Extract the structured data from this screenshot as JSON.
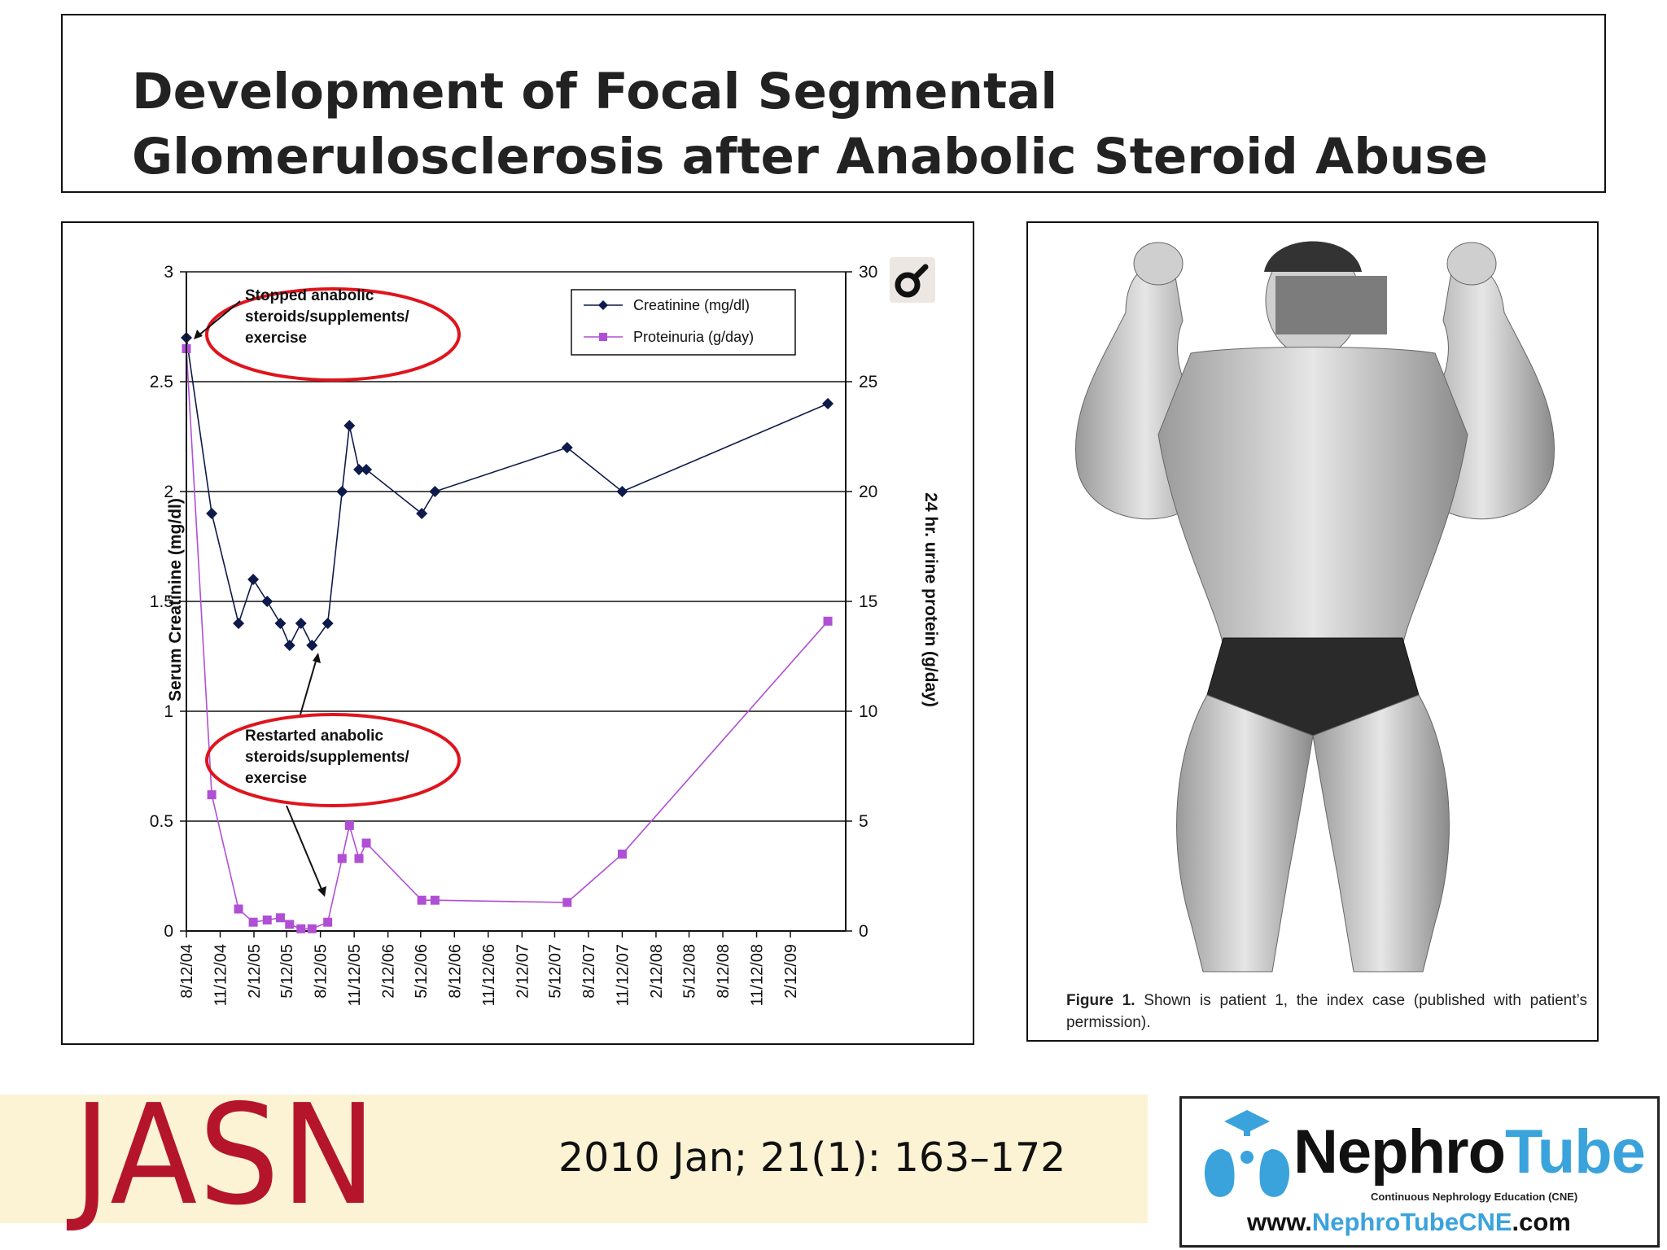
{
  "slide": {
    "title": "Development of Focal Segmental Glomerulosclerosis after Anabolic Steroid Abuse"
  },
  "chart_data": {
    "type": "line",
    "title": "",
    "ylabel": "Serum Creatinine (mg/dl)",
    "y2label": "24 hr. urine protein (g/day)",
    "ylim": [
      0,
      3
    ],
    "y2lim": [
      0,
      30
    ],
    "yticks": [
      "0",
      "0.5",
      "1",
      "1.5",
      "2",
      "2.5",
      "3"
    ],
    "y2ticks": [
      "0",
      "5",
      "10",
      "15",
      "20",
      "25",
      "30"
    ],
    "xticks": [
      "8/12/04",
      "11/12/04",
      "2/12/05",
      "5/12/05",
      "8/12/05",
      "11/12/05",
      "2/12/06",
      "5/12/06",
      "8/12/06",
      "11/12/06",
      "2/12/07",
      "5/12/07",
      "8/12/07",
      "11/12/07",
      "2/12/08",
      "5/12/08",
      "8/12/08",
      "11/12/08",
      "2/12/09"
    ],
    "grid": true,
    "legend_position": "top-right",
    "series": [
      {
        "name": "Creatinine (mg/dl)",
        "axis": "left",
        "color": "#0d1a4a",
        "marker": "diamond",
        "points": [
          {
            "x": "2004-08-12",
            "y": 2.7
          },
          {
            "x": "2004-10-20",
            "y": 1.9
          },
          {
            "x": "2005-01-01",
            "y": 1.4
          },
          {
            "x": "2005-02-10",
            "y": 1.6
          },
          {
            "x": "2005-03-20",
            "y": 1.5
          },
          {
            "x": "2005-04-25",
            "y": 1.4
          },
          {
            "x": "2005-05-20",
            "y": 1.3
          },
          {
            "x": "2005-06-20",
            "y": 1.4
          },
          {
            "x": "2005-07-20",
            "y": 1.3
          },
          {
            "x": "2005-09-01",
            "y": 1.4
          },
          {
            "x": "2005-10-10",
            "y": 2.0
          },
          {
            "x": "2005-10-30",
            "y": 2.3
          },
          {
            "x": "2005-11-25",
            "y": 2.1
          },
          {
            "x": "2005-12-15",
            "y": 2.1
          },
          {
            "x": "2006-05-15",
            "y": 1.9
          },
          {
            "x": "2006-06-20",
            "y": 2.0
          },
          {
            "x": "2007-06-15",
            "y": 2.2
          },
          {
            "x": "2007-11-12",
            "y": 2.0
          },
          {
            "x": "2009-05-25",
            "y": 2.4
          }
        ]
      },
      {
        "name": "Proteinuria (g/day)",
        "axis": "right",
        "color": "#b04fd4",
        "marker": "square",
        "points": [
          {
            "x": "2004-08-12",
            "y": 26.5
          },
          {
            "x": "2004-10-20",
            "y": 6.2
          },
          {
            "x": "2005-01-01",
            "y": 1.0
          },
          {
            "x": "2005-02-10",
            "y": 0.4
          },
          {
            "x": "2005-03-20",
            "y": 0.5
          },
          {
            "x": "2005-04-25",
            "y": 0.6
          },
          {
            "x": "2005-05-20",
            "y": 0.3
          },
          {
            "x": "2005-06-20",
            "y": 0.1
          },
          {
            "x": "2005-07-20",
            "y": 0.1
          },
          {
            "x": "2005-09-01",
            "y": 0.4
          },
          {
            "x": "2005-10-10",
            "y": 3.3
          },
          {
            "x": "2005-10-30",
            "y": 4.8
          },
          {
            "x": "2005-11-25",
            "y": 3.3
          },
          {
            "x": "2005-12-15",
            "y": 4.0
          },
          {
            "x": "2006-05-15",
            "y": 1.4
          },
          {
            "x": "2006-06-20",
            "y": 1.4
          },
          {
            "x": "2007-06-15",
            "y": 1.3
          },
          {
            "x": "2007-11-12",
            "y": 3.5
          },
          {
            "x": "2009-05-25",
            "y": 14.1
          }
        ]
      }
    ],
    "annotations": [
      "Stopped anabolic steroids/supplements/ exercise",
      "Restarted anabolic steroids/supplements/ exercise"
    ]
  },
  "figure": {
    "caption_label": "Figure 1.",
    "caption_text": "Shown is patient 1, the index case (published with patient’s permission)."
  },
  "footer": {
    "journal_logo": "JASN",
    "citation": "2010 Jan; 21(1): 163–172",
    "nephrotube_name_a": "Nephro",
    "nephrotube_name_b": "Tube",
    "nephrotube_sub": "Continuous Nephrology Education (CNE)",
    "nephrotube_url_a": "www.",
    "nephrotube_url_b": "NephroTube",
    "nephrotube_url_c": "CNE",
    "nephrotube_url_d": ".com"
  },
  "colors": {
    "jasn_red": "#b5152b",
    "footer_band": "#fbf3d3",
    "highlight_ellipse": "#e0141c",
    "nephrotube_blue": "#3aa3dc"
  }
}
